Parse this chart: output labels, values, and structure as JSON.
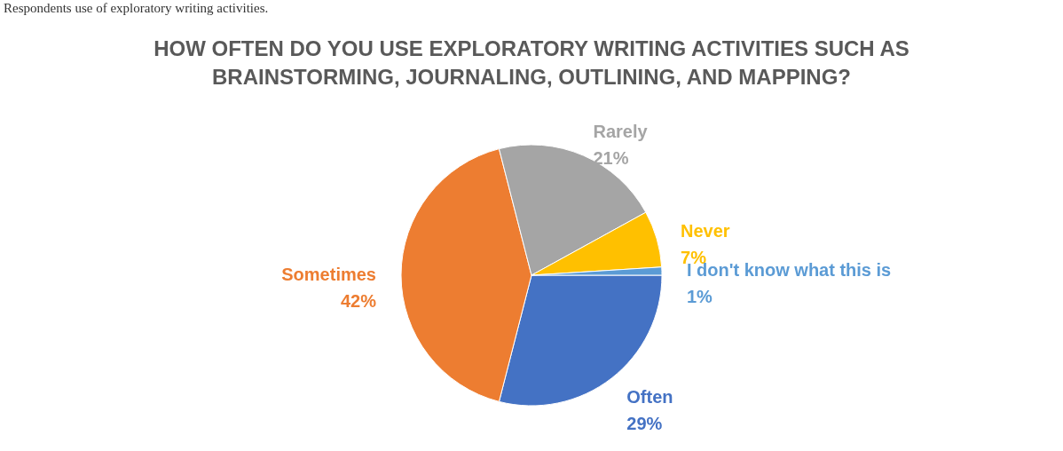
{
  "chart_data": {
    "type": "pie",
    "title": [
      "HOW OFTEN DO YOU USE EXPLORATORY WRITING ACTIVITIES SUCH AS",
      "BRAINSTORMING, JOURNALING, OUTLINING, AND MAPPING?"
    ],
    "categories": [
      "Often",
      "Sometimes",
      "Rarely",
      "Never",
      "I don't know what this is"
    ],
    "values": [
      29,
      42,
      21,
      7,
      1
    ],
    "colors": [
      "#4472c4",
      "#ed7d31",
      "#a5a5a5",
      "#ffc000",
      "#5b9bd5"
    ],
    "value_labels": [
      "29%",
      "42%",
      "21%",
      "7%",
      "1%"
    ],
    "legend": false,
    "annotations": [
      "Respondents use of exploratory writing activities."
    ]
  }
}
